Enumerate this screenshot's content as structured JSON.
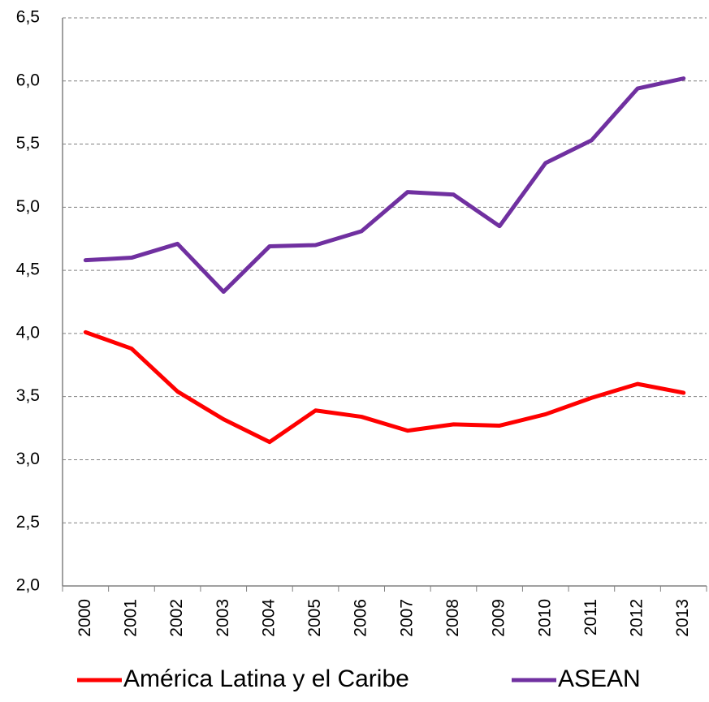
{
  "chart_data": {
    "type": "line",
    "categories": [
      "2000",
      "2001",
      "2002",
      "2003",
      "2004",
      "2005",
      "2006",
      "2007",
      "2008",
      "2009",
      "2010",
      "2011",
      "2012",
      "2013"
    ],
    "series": [
      {
        "name": "América Latina y el Caribe",
        "color": "#ff0000",
        "values": [
          4.01,
          3.88,
          3.54,
          3.32,
          3.14,
          3.39,
          3.34,
          3.23,
          3.28,
          3.27,
          3.36,
          3.49,
          3.6,
          3.53
        ]
      },
      {
        "name": "ASEAN",
        "color": "#7030a0",
        "values": [
          4.58,
          4.6,
          4.71,
          4.33,
          4.69,
          4.7,
          4.81,
          5.12,
          5.1,
          4.85,
          5.35,
          5.53,
          5.94,
          6.02
        ]
      }
    ],
    "ylim": [
      2.0,
      6.5
    ],
    "yticks": [
      {
        "value": 2.0,
        "label": "2,0"
      },
      {
        "value": 2.5,
        "label": "2,5"
      },
      {
        "value": 3.0,
        "label": "3,0"
      },
      {
        "value": 3.5,
        "label": "3,5"
      },
      {
        "value": 4.0,
        "label": "4,0"
      },
      {
        "value": 4.5,
        "label": "4,5"
      },
      {
        "value": 5.0,
        "label": "5,0"
      },
      {
        "value": 5.5,
        "label": "5,5"
      },
      {
        "value": 6.0,
        "label": "6,0"
      },
      {
        "value": 6.5,
        "label": "6,5"
      }
    ],
    "grid": true,
    "legend": "bottom"
  }
}
